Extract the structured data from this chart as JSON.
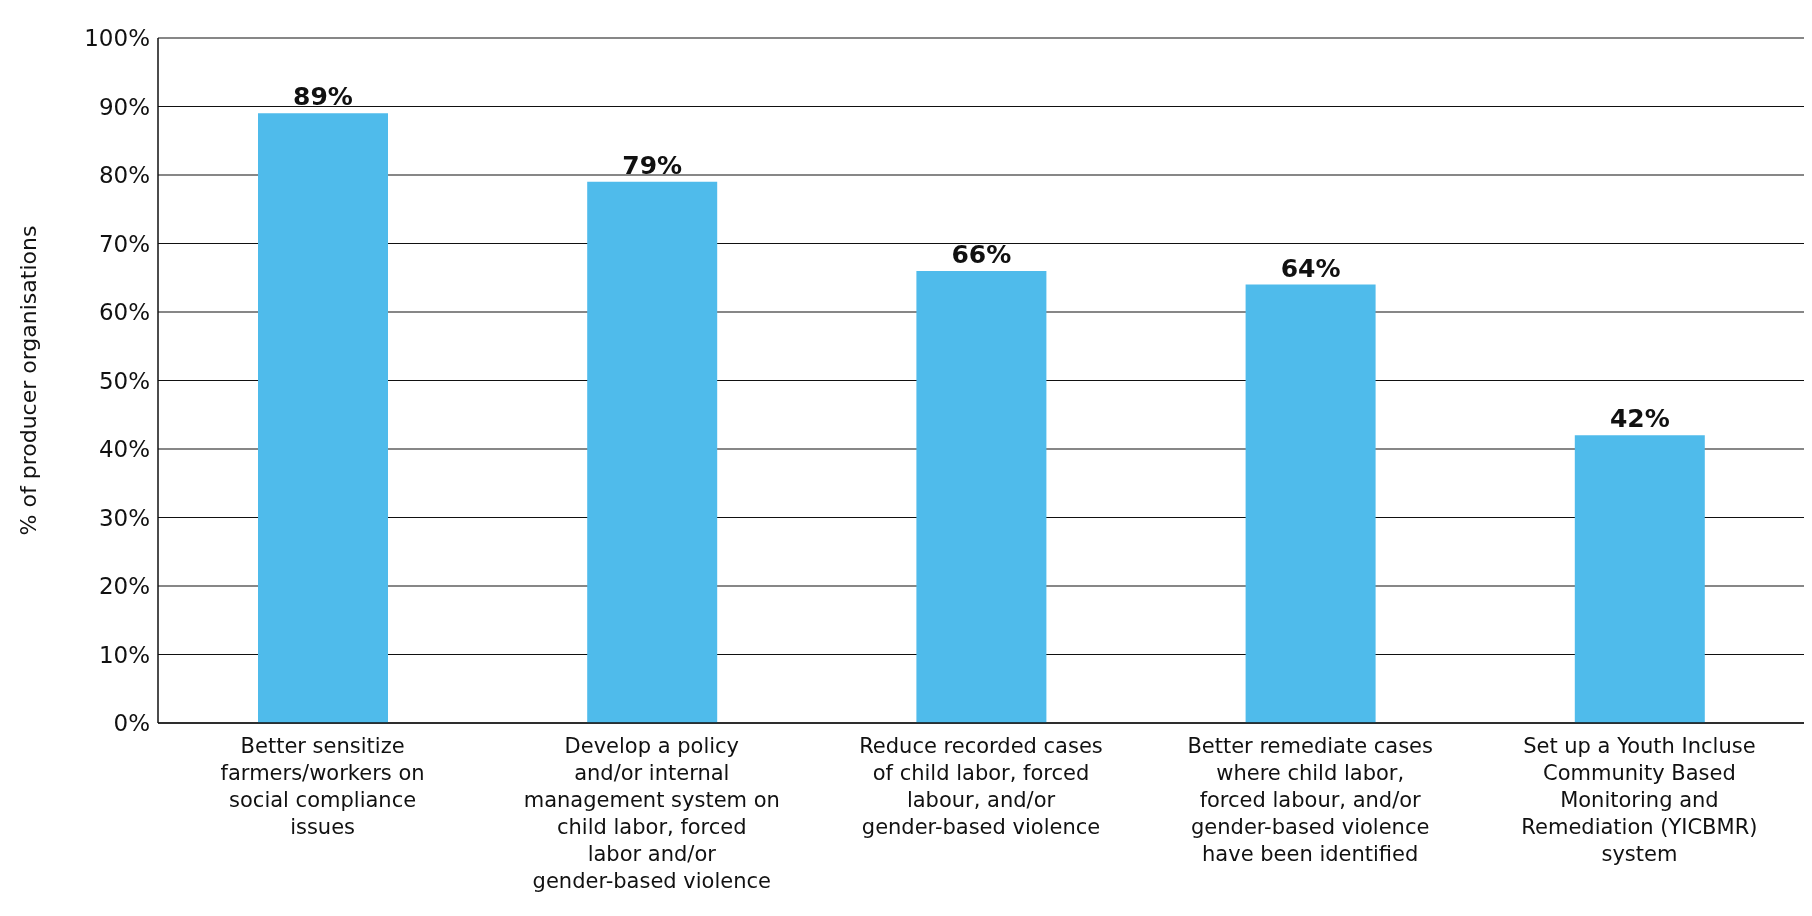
{
  "chart_data": {
    "type": "bar",
    "ylabel": "% of producer organisations",
    "categories": [
      "Better sensitize farmers/workers on social compliance issues",
      "Develop a policy and/or internal management system on child labor, forced labor and/or gender-based violence",
      "Reduce recorded cases of child labor, forced labour, and/or gender-based violence",
      "Better remediate cases where child labor, forced labour, and/or gender-based violence have been identified",
      "Set up a Youth Incluse Community Based Monitoring and Remediation (YICBMR) system"
    ],
    "values": [
      89,
      79,
      66,
      64,
      42
    ],
    "color": "#4fbbeb",
    "value_labels": [
      "89%",
      "79%",
      "66%",
      "64%",
      "42%"
    ],
    "ylim": [
      0,
      100
    ],
    "yticks": [
      {
        "value": 0,
        "label": "0%"
      },
      {
        "value": 10,
        "label": "10%"
      },
      {
        "value": 20,
        "label": "20%"
      },
      {
        "value": 30,
        "label": "30%"
      },
      {
        "value": 40,
        "label": "40%"
      },
      {
        "value": 50,
        "label": "50%"
      },
      {
        "value": 60,
        "label": "60%"
      },
      {
        "value": 70,
        "label": "70%"
      },
      {
        "value": 80,
        "label": "80%"
      },
      {
        "value": 90,
        "label": "90%"
      },
      {
        "value": 100,
        "label": "100%"
      }
    ],
    "grid": "y",
    "legend": false
  }
}
